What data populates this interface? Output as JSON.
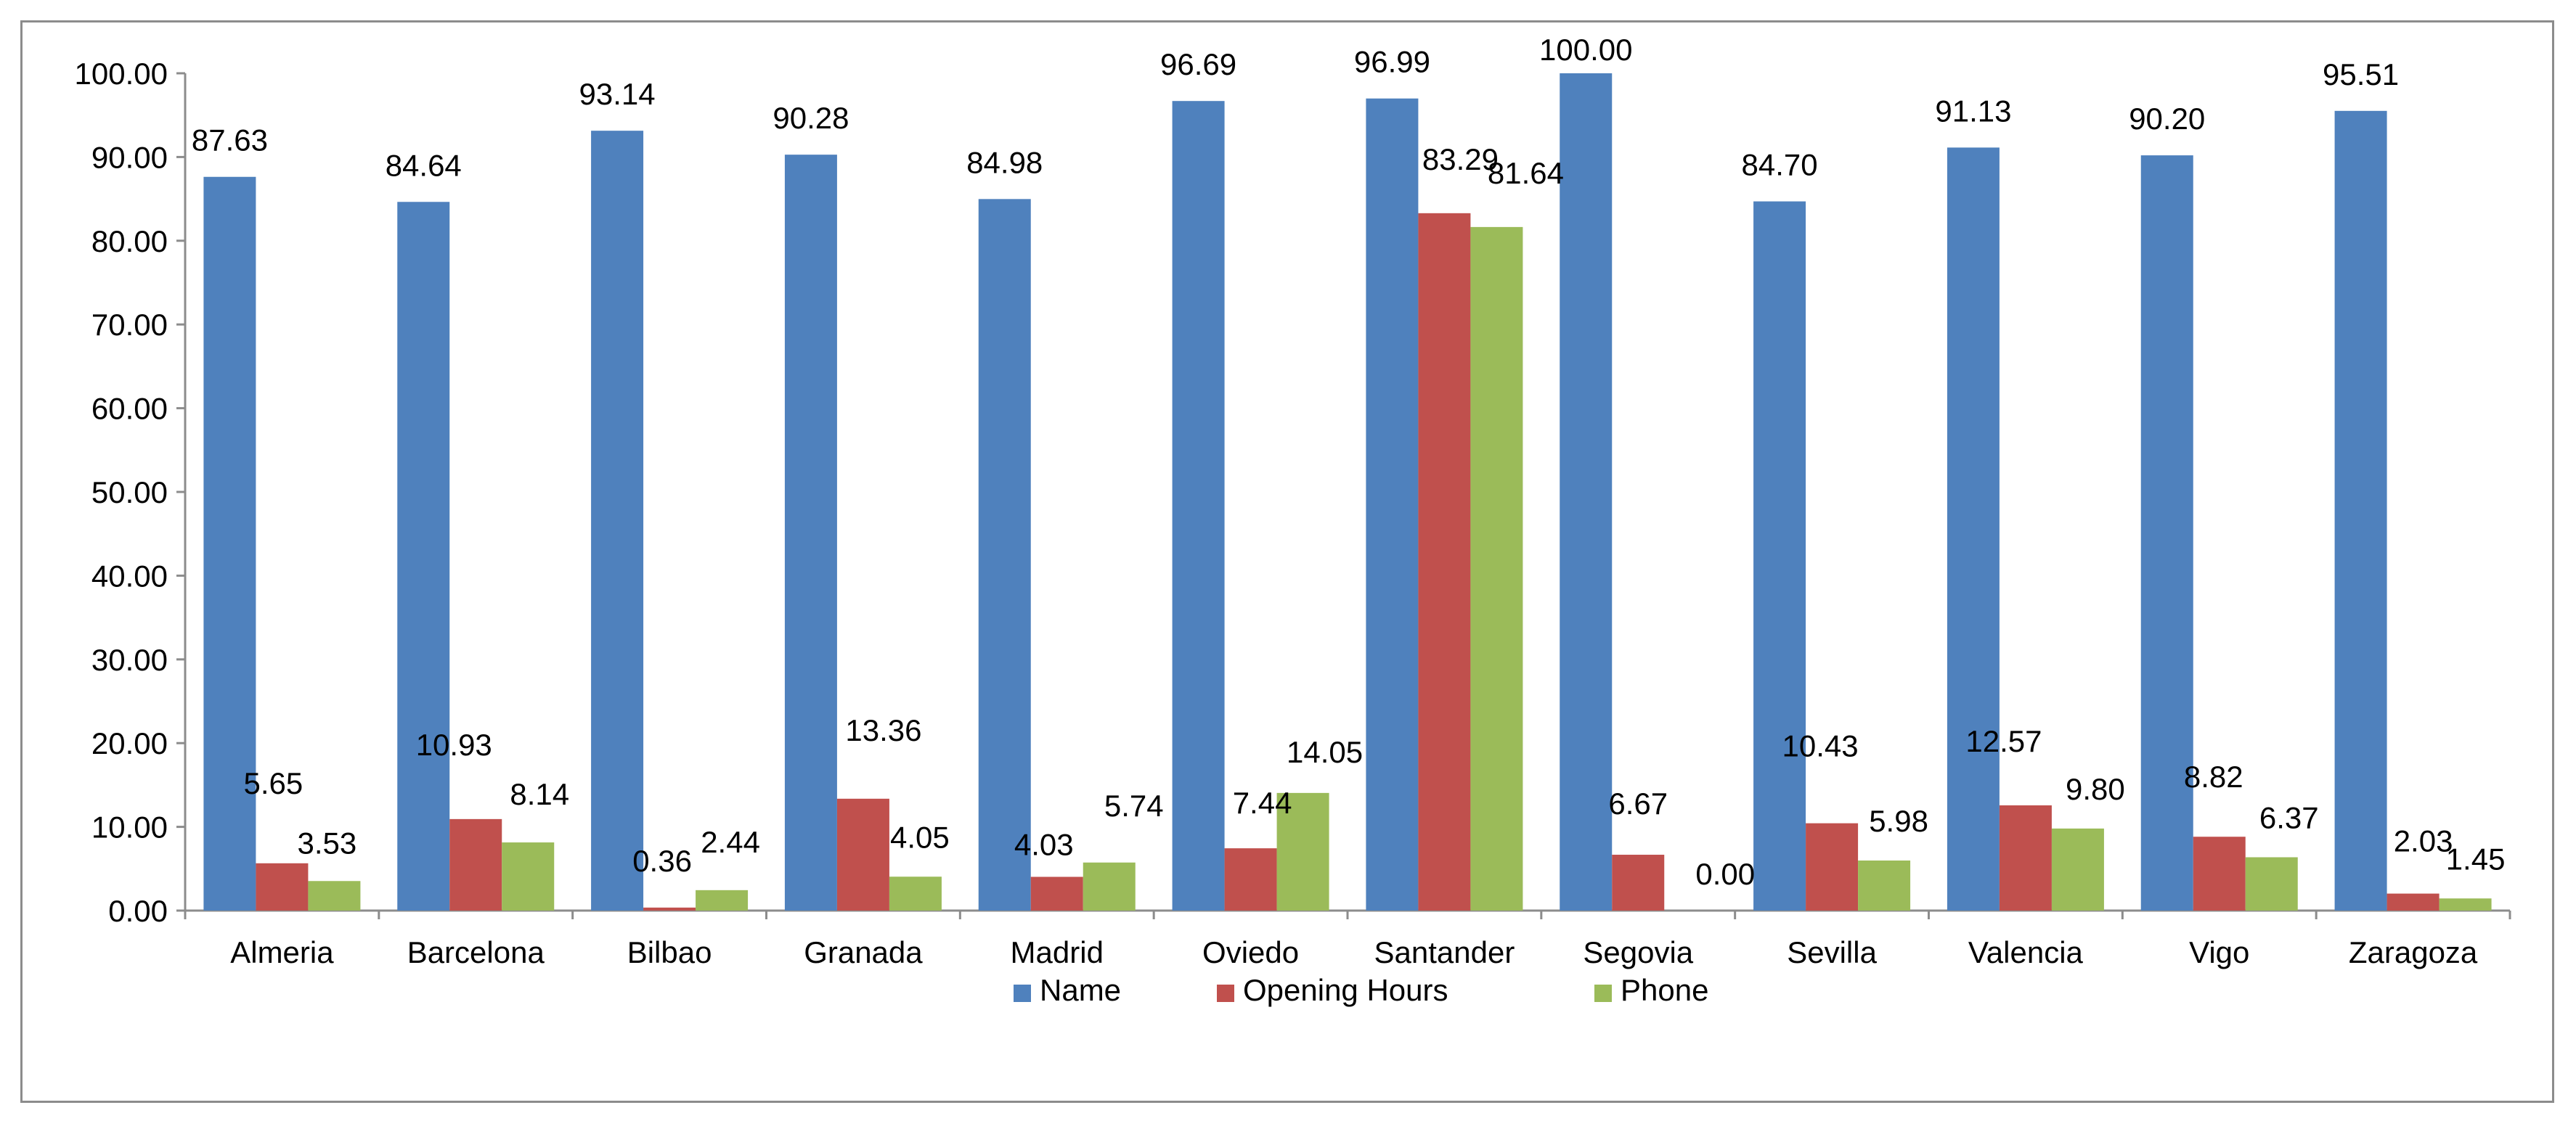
{
  "chart_data": {
    "type": "bar",
    "title": "",
    "xlabel": "",
    "ylabel": "",
    "ylim": [
      0,
      100
    ],
    "y_ticks": [
      "0.00",
      "10.00",
      "20.00",
      "30.00",
      "40.00",
      "50.00",
      "60.00",
      "70.00",
      "80.00",
      "90.00",
      "100.00"
    ],
    "grid": false,
    "legend_position": "bottom",
    "categories": [
      "Almeria",
      "Barcelona",
      "Bilbao",
      "Granada",
      "Madrid",
      "Oviedo",
      "Santander",
      "Segovia",
      "Sevilla",
      "Valencia",
      "Vigo",
      "Zaragoza"
    ],
    "series": [
      {
        "name": "Name",
        "color": "#4f81bd",
        "values": [
          87.63,
          84.64,
          93.14,
          90.28,
          84.98,
          96.69,
          96.99,
          100.0,
          84.7,
          91.13,
          90.2,
          95.51
        ],
        "labels": [
          "87.63",
          "84.64",
          "93.14",
          "90.28",
          "84.98",
          "96.69",
          "96.99",
          "100.00",
          "84.70",
          "91.13",
          "90.20",
          "95.51"
        ]
      },
      {
        "name": "Opening Hours",
        "color": "#c0504d",
        "values": [
          5.65,
          10.93,
          0.36,
          13.36,
          4.03,
          7.44,
          83.29,
          6.67,
          10.43,
          12.57,
          8.82,
          2.03
        ],
        "labels": [
          "5.65",
          "10.93",
          "0.36",
          "13.36",
          "4.03",
          "7.44",
          "83.29",
          "6.67",
          "10.43",
          "12.57",
          "8.82",
          "2.03"
        ]
      },
      {
        "name": "Phone",
        "color": "#9bbb59",
        "values": [
          3.53,
          8.14,
          2.44,
          4.05,
          5.74,
          14.05,
          81.64,
          0.0,
          5.98,
          9.8,
          6.37,
          1.45
        ],
        "labels": [
          "3.53",
          "8.14",
          "2.44",
          "4.05",
          "5.74",
          "14.05",
          "81.64",
          "0.00",
          "5.98",
          "9.80",
          "6.37",
          "1.45"
        ]
      }
    ]
  }
}
